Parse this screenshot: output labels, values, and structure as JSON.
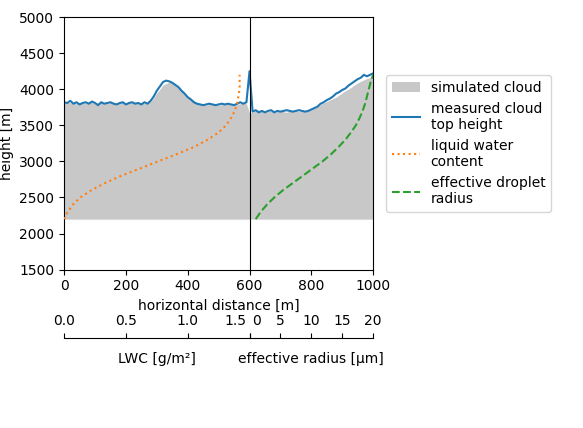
{
  "chart_data": {
    "type": "line",
    "xlabel": "horizontal distance [m]",
    "ylabel": "height [m]",
    "xlim": [
      0,
      1000
    ],
    "ylim": [
      1500,
      5000
    ],
    "xticks": [
      0,
      200,
      400,
      600,
      800,
      1000
    ],
    "yticks": [
      1500,
      2000,
      2500,
      3000,
      3500,
      4000,
      4500,
      5000
    ],
    "legend": "right",
    "cloud_base": 2200,
    "divider_x": 600,
    "lwc_axis": {
      "label": "LWC [g/m²]",
      "xlim": [
        0.0,
        1.5
      ],
      "xticks": [
        {
          "value": 0.0,
          "label": "0.0"
        },
        0.5,
        {
          "value": 1.0,
          "label": "1.0"
        },
        1.5
      ]
    },
    "re_axis": {
      "label": "effective radius [μm]",
      "xlim": [
        0,
        20
      ],
      "xticks": [
        0,
        5,
        10,
        15,
        20
      ]
    },
    "series": [
      {
        "name": "simulated cloud",
        "type": "area",
        "color": "#c8c8c8",
        "x": [
          0,
          10,
          20,
          30,
          40,
          50,
          60,
          70,
          80,
          90,
          100,
          110,
          120,
          130,
          140,
          150,
          160,
          170,
          180,
          190,
          200,
          210,
          220,
          230,
          240,
          250,
          260,
          270,
          280,
          290,
          300,
          310,
          320,
          330,
          340,
          350,
          360,
          370,
          380,
          390,
          400,
          410,
          420,
          430,
          440,
          450,
          460,
          470,
          480,
          490,
          500,
          510,
          520,
          530,
          540,
          550,
          560,
          570,
          580,
          590,
          600,
          610,
          620,
          630,
          640,
          650,
          660,
          670,
          680,
          690,
          700,
          710,
          720,
          730,
          740,
          750,
          760,
          770,
          780,
          790,
          800,
          810,
          820,
          830,
          840,
          850,
          860,
          870,
          880,
          890,
          900,
          910,
          920,
          930,
          940,
          950,
          960,
          970,
          980,
          990,
          1000
        ],
        "values": [
          3820,
          3830,
          3810,
          3820,
          3800,
          3815,
          3810,
          3805,
          3820,
          3815,
          3800,
          3810,
          3820,
          3810,
          3800,
          3815,
          3820,
          3800,
          3810,
          3820,
          3800,
          3820,
          3810,
          3800,
          3810,
          3820,
          3800,
          3820,
          3830,
          3880,
          3950,
          4000,
          4060,
          4080,
          4100,
          4080,
          4050,
          4020,
          3980,
          3940,
          3900,
          3870,
          3840,
          3810,
          3800,
          3790,
          3780,
          3790,
          3800,
          3790,
          3780,
          3790,
          3800,
          3790,
          3785,
          3780,
          3790,
          3800,
          3810,
          3800,
          3670,
          3680,
          3700,
          3710,
          3690,
          3680,
          3690,
          3700,
          3680,
          3690,
          3700,
          3690,
          3680,
          3700,
          3710,
          3700,
          3690,
          3700,
          3710,
          3700,
          3720,
          3740,
          3760,
          3790,
          3810,
          3830,
          3850,
          3870,
          3890,
          3920,
          3950,
          3980,
          4000,
          4030,
          4060,
          4090,
          4110,
          4130,
          4150,
          4160,
          4180
        ]
      },
      {
        "name": "measured cloud\ntop height",
        "type": "line",
        "line_style": "solid",
        "x": [
          0,
          10,
          20,
          30,
          40,
          50,
          60,
          70,
          80,
          90,
          100,
          110,
          120,
          130,
          140,
          150,
          160,
          170,
          180,
          190,
          200,
          210,
          220,
          230,
          240,
          250,
          260,
          270,
          280,
          290,
          300,
          310,
          320,
          330,
          340,
          350,
          360,
          370,
          380,
          390,
          400,
          410,
          420,
          430,
          440,
          450,
          460,
          470,
          480,
          490,
          500,
          510,
          520,
          530,
          540,
          550,
          560,
          570,
          580,
          590,
          600,
          610,
          620,
          630,
          640,
          650,
          660,
          670,
          680,
          690,
          700,
          710,
          720,
          730,
          740,
          750,
          760,
          770,
          780,
          790,
          800,
          810,
          820,
          830,
          840,
          850,
          860,
          870,
          880,
          890,
          900,
          910,
          920,
          930,
          940,
          950,
          960,
          970,
          980,
          990,
          1000
        ],
        "values": [
          3820,
          3810,
          3840,
          3800,
          3820,
          3790,
          3810,
          3820,
          3800,
          3830,
          3810,
          3780,
          3820,
          3800,
          3810,
          3820,
          3800,
          3790,
          3810,
          3820,
          3790,
          3810,
          3820,
          3800,
          3810,
          3790,
          3820,
          3800,
          3840,
          3900,
          3980,
          4040,
          4100,
          4120,
          4110,
          4090,
          4060,
          4030,
          3980,
          3940,
          3890,
          3860,
          3820,
          3800,
          3790,
          3780,
          3790,
          3800,
          3790,
          3780,
          3790,
          3800,
          3790,
          3800,
          3790,
          3780,
          3800,
          3820,
          3800,
          3820,
          4250,
          3690,
          3710,
          3680,
          3700,
          3680,
          3700,
          3710,
          3680,
          3700,
          3690,
          3700,
          3710,
          3700,
          3690,
          3700,
          3710,
          3700,
          3690,
          3700,
          3720,
          3740,
          3760,
          3800,
          3820,
          3850,
          3870,
          3900,
          3940,
          3960,
          3990,
          4010,
          4050,
          4080,
          4110,
          4140,
          4160,
          4200,
          4180,
          4200,
          4220
        ]
      },
      {
        "name": "liquid water\ncontent",
        "type": "line",
        "line_style": "dotted",
        "axis": "lwc",
        "x": [
          0.0,
          0.01,
          0.03,
          0.07,
          0.13,
          0.22,
          0.33,
          0.46,
          0.61,
          0.76,
          0.91,
          1.05,
          1.16,
          1.25,
          1.31,
          1.35,
          1.38,
          1.4,
          1.41,
          1.42,
          1.42,
          1.42
        ],
        "values": [
          2200,
          2250,
          2300,
          2400,
          2500,
          2600,
          2700,
          2800,
          2900,
          3000,
          3100,
          3200,
          3300,
          3400,
          3500,
          3600,
          3700,
          3800,
          3900,
          4000,
          4100,
          4200
        ]
      },
      {
        "name": "effective droplet\nradius",
        "type": "line",
        "line_style": "dashed",
        "axis": "re",
        "x": [
          1.0,
          1.8,
          2.8,
          4.0,
          5.4,
          7.0,
          8.6,
          10.2,
          11.8,
          13.2,
          14.4,
          15.5,
          16.4,
          17.2,
          17.8,
          18.3,
          18.7,
          19.0,
          19.3,
          19.6,
          20.0
        ],
        "values": [
          2200,
          2300,
          2400,
          2500,
          2600,
          2700,
          2800,
          2900,
          3000,
          3100,
          3200,
          3300,
          3400,
          3500,
          3600,
          3700,
          3800,
          3900,
          4000,
          4100,
          4200
        ]
      }
    ]
  }
}
